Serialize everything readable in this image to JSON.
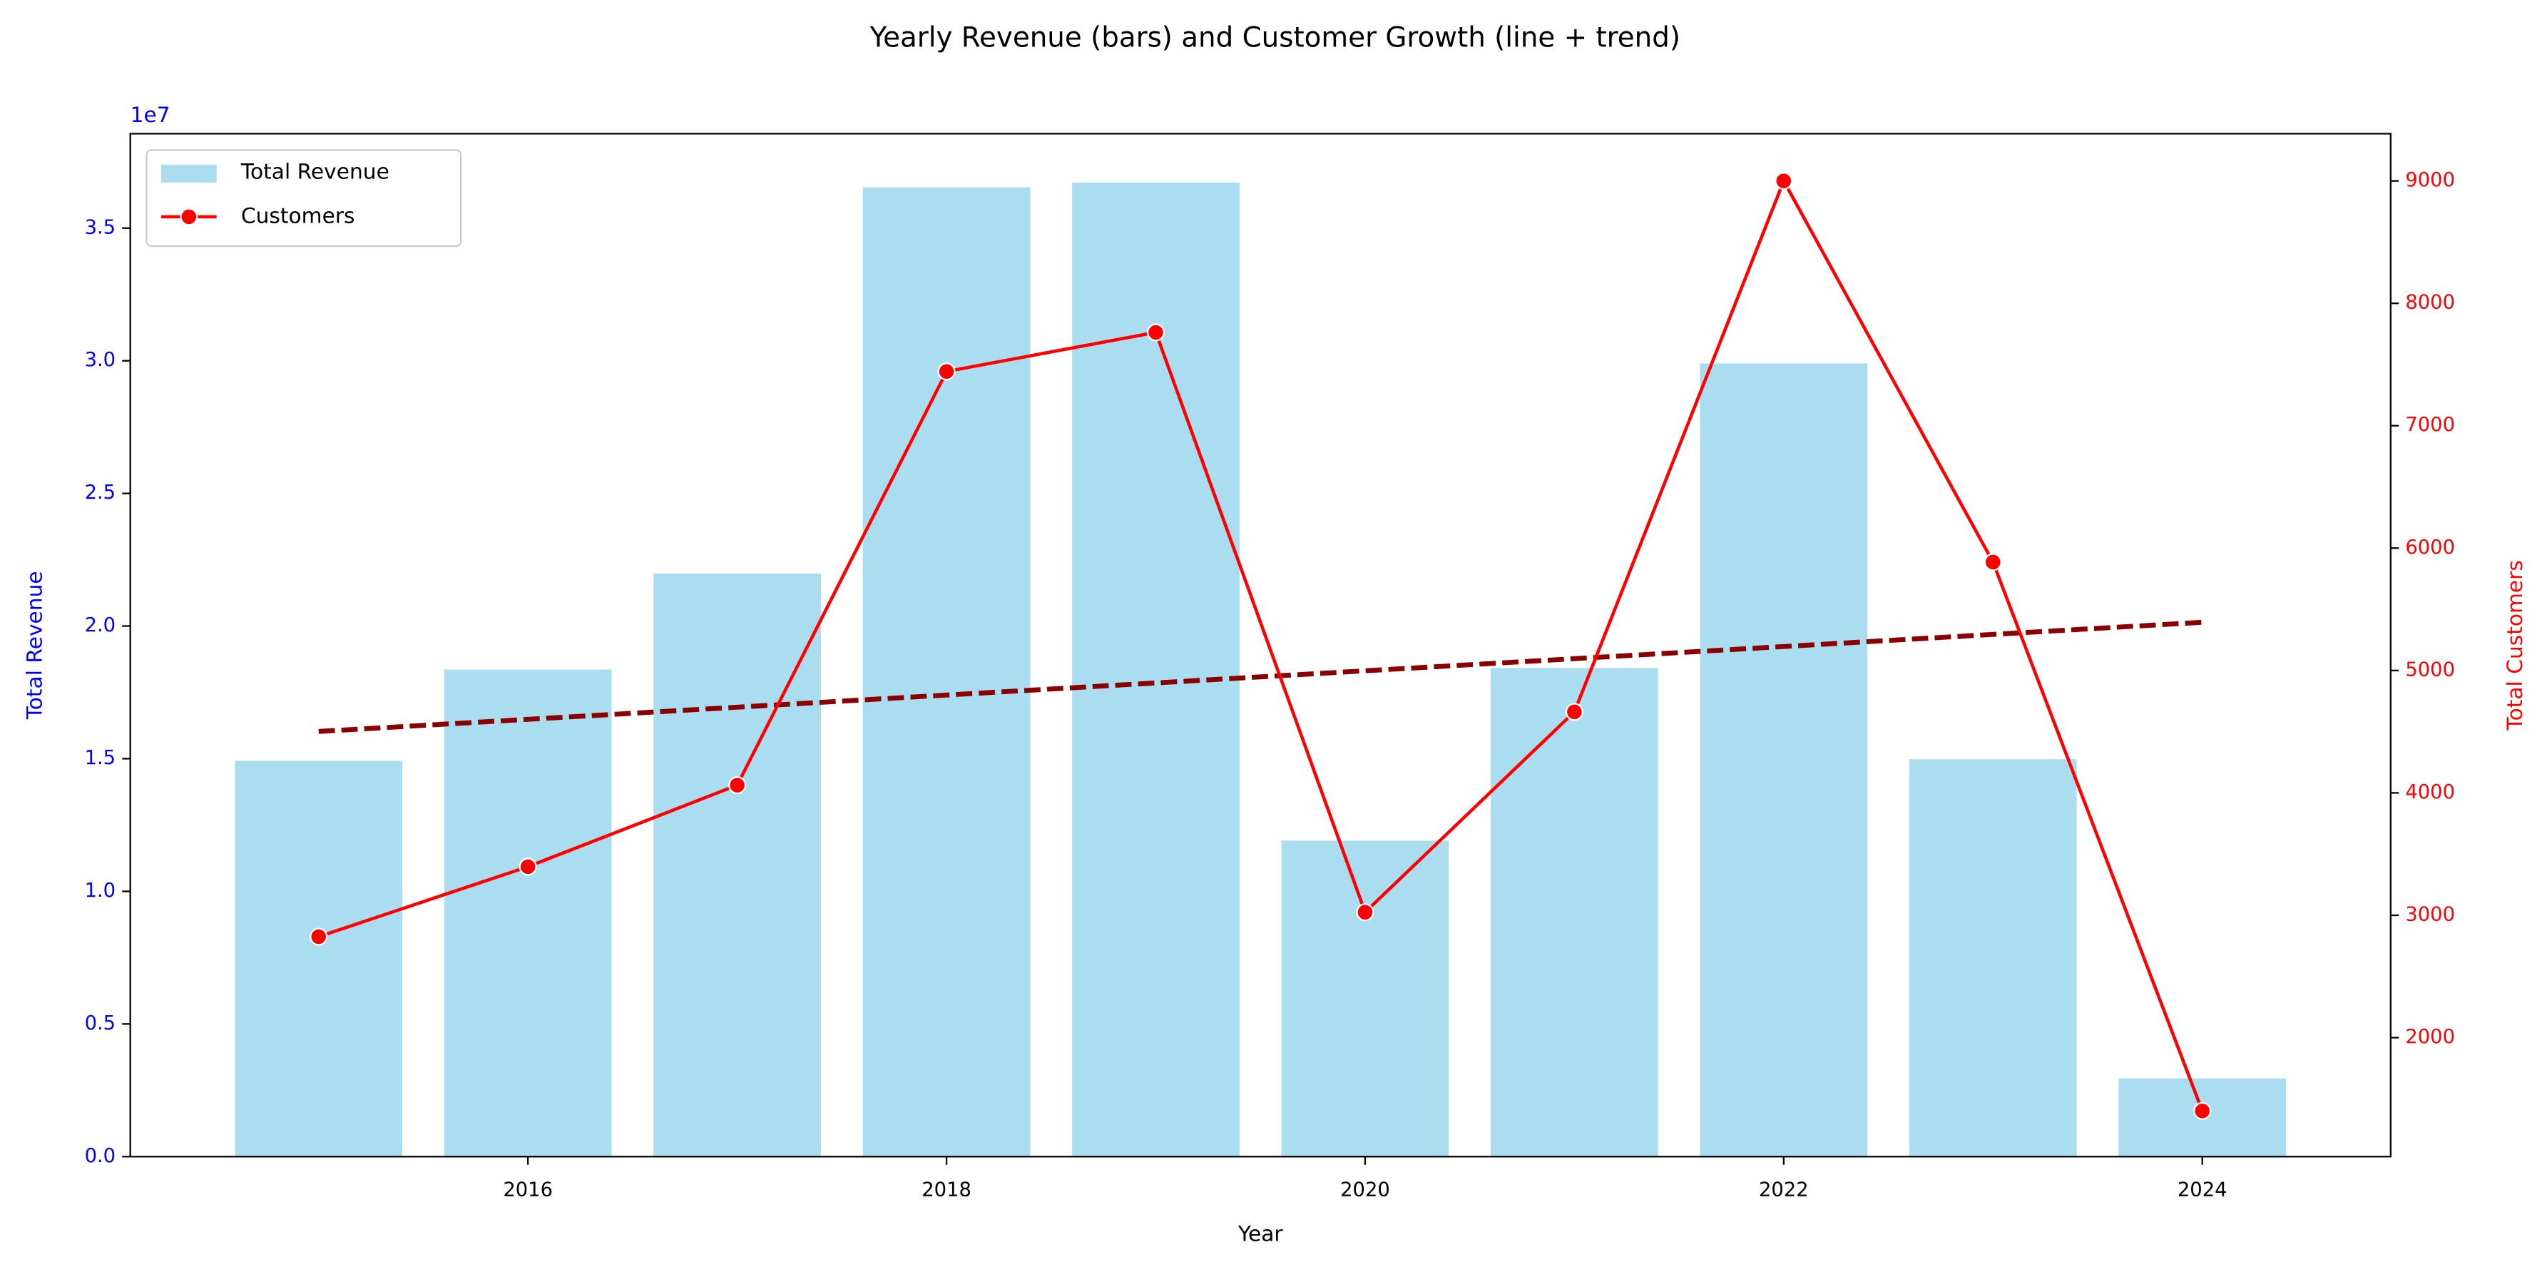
{
  "chart_data": {
    "type": "bar",
    "title": "Yearly Revenue (bars) and Customer Growth (line + trend)",
    "xlabel": "Year",
    "ylabel": "Total Revenue",
    "y2label": "Total Customers",
    "y_offset_label": "1e7",
    "x": [
      2015,
      2016,
      2017,
      2018,
      2019,
      2020,
      2021,
      2022,
      2023,
      2024
    ],
    "series": [
      {
        "name": "Total Revenue",
        "type": "bar",
        "color": "#87ceeb",
        "values": [
          14920000,
          18360000,
          21980000,
          36540000,
          36720000,
          11910000,
          18420000,
          29900000,
          14980000,
          2950000
        ]
      },
      {
        "name": "Customers",
        "type": "line",
        "axis": "y2",
        "color": "#ff0000",
        "values": [
          2825,
          3397,
          4063,
          7443,
          7763,
          3025,
          4662,
          9000,
          5886,
          1401
        ]
      }
    ],
    "trend": {
      "x": [
        2015,
        2024
      ],
      "values": [
        4502,
        5394
      ],
      "color": "#8b0000",
      "axis": "y2"
    },
    "xlim": [
      2014.1,
      2024.9
    ],
    "xticks": [
      2016,
      2018,
      2020,
      2022,
      2024
    ],
    "ylim": [
      0,
      38560000
    ],
    "yticks": [
      {
        "value": 0,
        "label": "0.0"
      },
      {
        "value": 5000000,
        "label": "0.5"
      },
      {
        "value": 10000000,
        "label": "1.0"
      },
      {
        "value": 15000000,
        "label": "1.5"
      },
      {
        "value": 20000000,
        "label": "2.0"
      },
      {
        "value": 25000000,
        "label": "2.5"
      },
      {
        "value": 30000000,
        "label": "3.0"
      },
      {
        "value": 35000000,
        "label": "3.5"
      }
    ],
    "y2lim": [
      1028,
      9386
    ],
    "y2ticks": [
      2000,
      3000,
      4000,
      5000,
      6000,
      7000,
      8000,
      9000
    ],
    "ycolor": "#0000ff",
    "y2color": "#ff0000",
    "legend": "upper left",
    "grid": false
  }
}
